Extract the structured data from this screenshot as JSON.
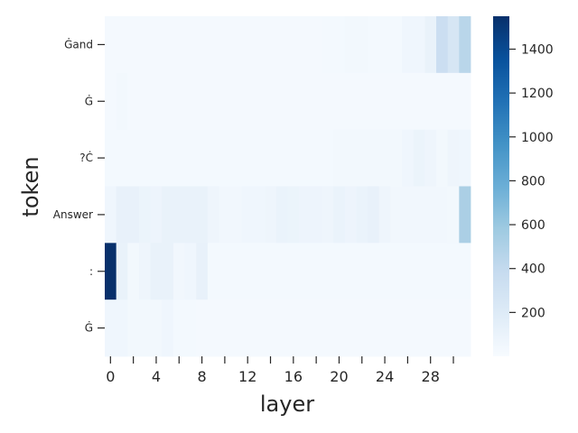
{
  "chart_data": {
    "type": "heatmap",
    "xlabel": "layer",
    "ylabel": "token",
    "tokens": [
      "Ġand",
      "Ġ",
      "?Ċ",
      "Answer",
      ":",
      "Ġ"
    ],
    "x_tick_labels": [
      "0",
      "4",
      "8",
      "12",
      "16",
      "20",
      "24",
      "28"
    ],
    "x_tick_values": [
      0,
      4,
      8,
      12,
      16,
      20,
      24,
      28
    ],
    "layers": 32,
    "colorbar": {
      "min": 0,
      "max": 1550,
      "ticks": [
        200,
        400,
        600,
        800,
        1000,
        1200,
        1400
      ],
      "tick_labels": [
        "200",
        "400",
        "600",
        "800",
        "1000",
        "1200",
        "1400"
      ],
      "colormap": "Blues"
    },
    "values": [
      [
        20,
        20,
        20,
        20,
        20,
        20,
        20,
        20,
        20,
        20,
        20,
        20,
        20,
        20,
        20,
        20,
        20,
        20,
        20,
        30,
        30,
        40,
        40,
        30,
        30,
        30,
        60,
        60,
        110,
        350,
        260,
        450
      ],
      [
        20,
        40,
        20,
        20,
        20,
        20,
        20,
        20,
        20,
        20,
        20,
        20,
        20,
        20,
        20,
        20,
        20,
        20,
        20,
        20,
        20,
        20,
        20,
        20,
        20,
        20,
        20,
        20,
        20,
        20,
        20,
        20
      ],
      [
        30,
        30,
        30,
        30,
        30,
        30,
        30,
        30,
        30,
        30,
        30,
        30,
        30,
        30,
        30,
        30,
        30,
        30,
        30,
        30,
        40,
        40,
        40,
        40,
        40,
        40,
        60,
        90,
        70,
        40,
        70,
        60
      ],
      [
        60,
        120,
        120,
        90,
        80,
        110,
        110,
        110,
        110,
        70,
        50,
        50,
        60,
        60,
        70,
        100,
        90,
        80,
        80,
        70,
        100,
        80,
        100,
        120,
        70,
        50,
        50,
        50,
        50,
        50,
        40,
        520
      ],
      [
        1550,
        110,
        40,
        70,
        110,
        110,
        50,
        60,
        120,
        30,
        30,
        30,
        30,
        30,
        30,
        30,
        30,
        30,
        30,
        30,
        30,
        30,
        30,
        30,
        30,
        30,
        30,
        30,
        30,
        30,
        30,
        30
      ],
      [
        60,
        60,
        40,
        40,
        40,
        60,
        30,
        30,
        20,
        20,
        20,
        20,
        20,
        20,
        20,
        20,
        20,
        20,
        20,
        20,
        20,
        20,
        20,
        20,
        20,
        20,
        20,
        20,
        20,
        20,
        20,
        20
      ]
    ]
  }
}
